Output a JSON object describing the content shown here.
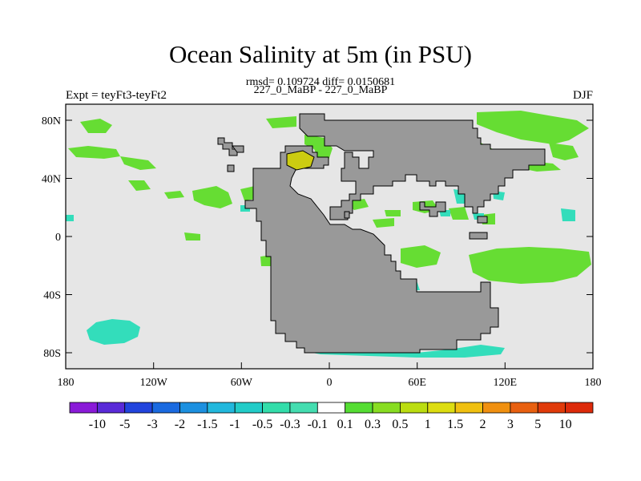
{
  "title": "Ocean Salinity at 5m (in PSU)",
  "subtitle": "rmsd= 0.109724 diff= 0.0150681",
  "left_label": "Expt = teyFt3-teyFt2",
  "center_label": "227_0_MaBP - 227_0_MaBP",
  "right_label": "DJF",
  "x_ticks": [
    "180",
    "120W",
    "60W",
    "0",
    "60E",
    "120E",
    "180"
  ],
  "y_ticks": [
    "80N",
    "40N",
    "0",
    "40S",
    "80S"
  ],
  "colors": {
    "background": "#e6e6e6",
    "land": "#999999",
    "light_green": "#66dd33",
    "cyan": "#33ddbb",
    "yellow": "#cccc11",
    "blue": "#1177dd"
  },
  "colorbar": {
    "labels": [
      "-10",
      "-5",
      "-3",
      "-2",
      "-1.5",
      "-1",
      "-0.5",
      "-0.3",
      "-0.1",
      "0.1",
      "0.3",
      "0.5",
      "1",
      "1.5",
      "2",
      "3",
      "5",
      "10"
    ],
    "colors": [
      "#8a1ad8",
      "#5a2ad8",
      "#2244dd",
      "#1a6ae0",
      "#1c90e0",
      "#22b8dd",
      "#22ccc8",
      "#33ddaa",
      "#44ddb0",
      "#ffffff",
      "#55dd33",
      "#88dd22",
      "#bbdd11",
      "#dddd11",
      "#f0c010",
      "#f09010",
      "#e86010",
      "#e03a0a",
      "#dd2a0a"
    ]
  }
}
